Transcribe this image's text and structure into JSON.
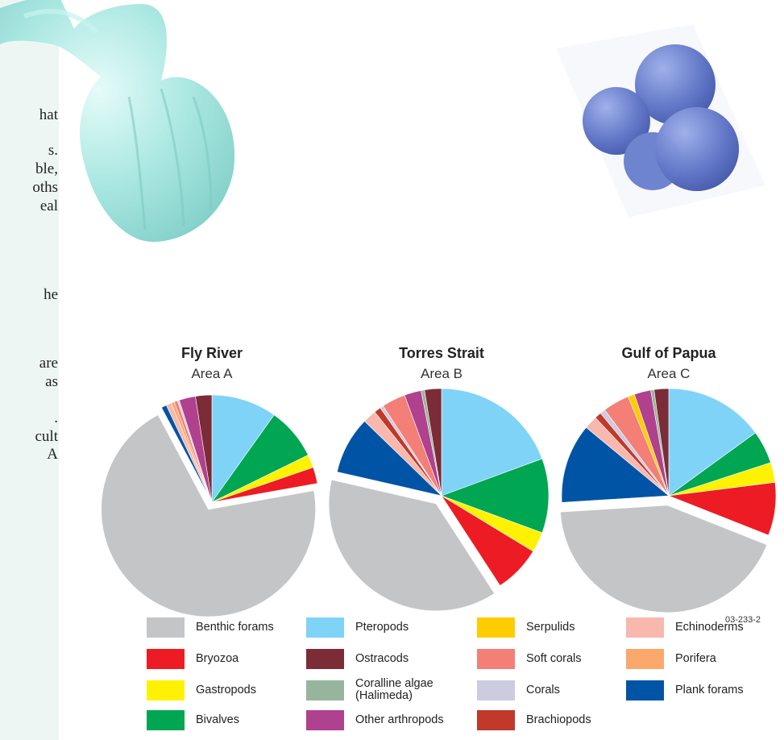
{
  "sidebar_text": [
    "hat",
    "s.",
    "ble,",
    "oths",
    "eal",
    "he",
    "are",
    "as",
    ".",
    "cult",
    "A"
  ],
  "figure_code": "03-233-2",
  "chart_data": [
    {
      "type": "pie",
      "title": "Fly River",
      "subtitle": "Area A",
      "slices": [
        {
          "name": "Pteropods",
          "value": 10
        },
        {
          "name": "Bivalves",
          "value": 8
        },
        {
          "name": "Gastropods",
          "value": 2
        },
        {
          "name": "Bryozoa",
          "value": 2.5
        },
        {
          "name": "Benthic forams",
          "value": 71
        },
        {
          "name": "Plank forams",
          "value": 0.8
        },
        {
          "name": "Echinoderms",
          "value": 0.8
        },
        {
          "name": "Porifera",
          "value": 0.5
        },
        {
          "name": "Soft corals",
          "value": 0.5
        },
        {
          "name": "Corals",
          "value": 0.3
        },
        {
          "name": "Other arthropods",
          "value": 2.5
        },
        {
          "name": "Ostracods",
          "value": 2.5
        }
      ]
    },
    {
      "type": "pie",
      "title": "Torres Strait",
      "subtitle": "Area B",
      "slices": [
        {
          "name": "Pteropods",
          "value": 19
        },
        {
          "name": "Bivalves",
          "value": 11
        },
        {
          "name": "Gastropods",
          "value": 3
        },
        {
          "name": "Bryozoa",
          "value": 7
        },
        {
          "name": "Benthic forams",
          "value": 37
        },
        {
          "name": "Plank forams",
          "value": 8.5
        },
        {
          "name": "Echinoderms",
          "value": 2
        },
        {
          "name": "Brachiopods",
          "value": 1
        },
        {
          "name": "Corals",
          "value": 0.5
        },
        {
          "name": "Soft corals",
          "value": 3.5
        },
        {
          "name": "Other arthropods",
          "value": 2.5
        },
        {
          "name": "Coralline algae (Halimeda)",
          "value": 0.5
        },
        {
          "name": "Ostracods",
          "value": 2.5
        }
      ]
    },
    {
      "type": "pie",
      "title": "Gulf of Papua",
      "subtitle": "Area C",
      "slices": [
        {
          "name": "Pteropods",
          "value": 15
        },
        {
          "name": "Bivalves",
          "value": 5
        },
        {
          "name": "Gastropods",
          "value": 3
        },
        {
          "name": "Bryozoa",
          "value": 8
        },
        {
          "name": "Benthic forams",
          "value": 43
        },
        {
          "name": "Plank forams",
          "value": 12
        },
        {
          "name": "Echinoderms",
          "value": 2
        },
        {
          "name": "Brachiopods",
          "value": 1
        },
        {
          "name": "Corals",
          "value": 0.8
        },
        {
          "name": "Soft corals",
          "value": 4
        },
        {
          "name": "Serpulids",
          "value": 1
        },
        {
          "name": "Other arthropods",
          "value": 2.5
        },
        {
          "name": "Coralline algae (Halimeda)",
          "value": 0.5
        },
        {
          "name": "Ostracods",
          "value": 2.2
        }
      ]
    }
  ],
  "legend": [
    {
      "label": "Benthic forams",
      "color": "#c4c5c7"
    },
    {
      "label": "Pteropods",
      "color": "#7fd3f7"
    },
    {
      "label": "Serpulids",
      "color": "#ffcc00"
    },
    {
      "label": "Echinoderms",
      "color": "#f8b8ad"
    },
    {
      "label": "Bryozoa",
      "color": "#ed1c24"
    },
    {
      "label": "Ostracods",
      "color": "#7b2c36"
    },
    {
      "label": "Soft corals",
      "color": "#f37f77"
    },
    {
      "label": "Porifera",
      "color": "#fba86c"
    },
    {
      "label": "Gastropods",
      "color": "#fff200"
    },
    {
      "label": "Coralline algae (Halimeda)",
      "color": "#97b59d"
    },
    {
      "label": "Corals",
      "color": "#cccbe0"
    },
    {
      "label": "Plank forams",
      "color": "#0054a6"
    },
    {
      "label": "Bivalves",
      "color": "#00a651"
    },
    {
      "label": "Other arthropods",
      "color": "#b0418f"
    },
    {
      "label": "Brachiopods",
      "color": "#c0392b"
    }
  ],
  "images": [
    {
      "name": "pteropod-shell-micrograph",
      "color": "#9fe3de"
    },
    {
      "name": "planktonic-foram-micrograph",
      "color": "#5f78c9"
    }
  ]
}
